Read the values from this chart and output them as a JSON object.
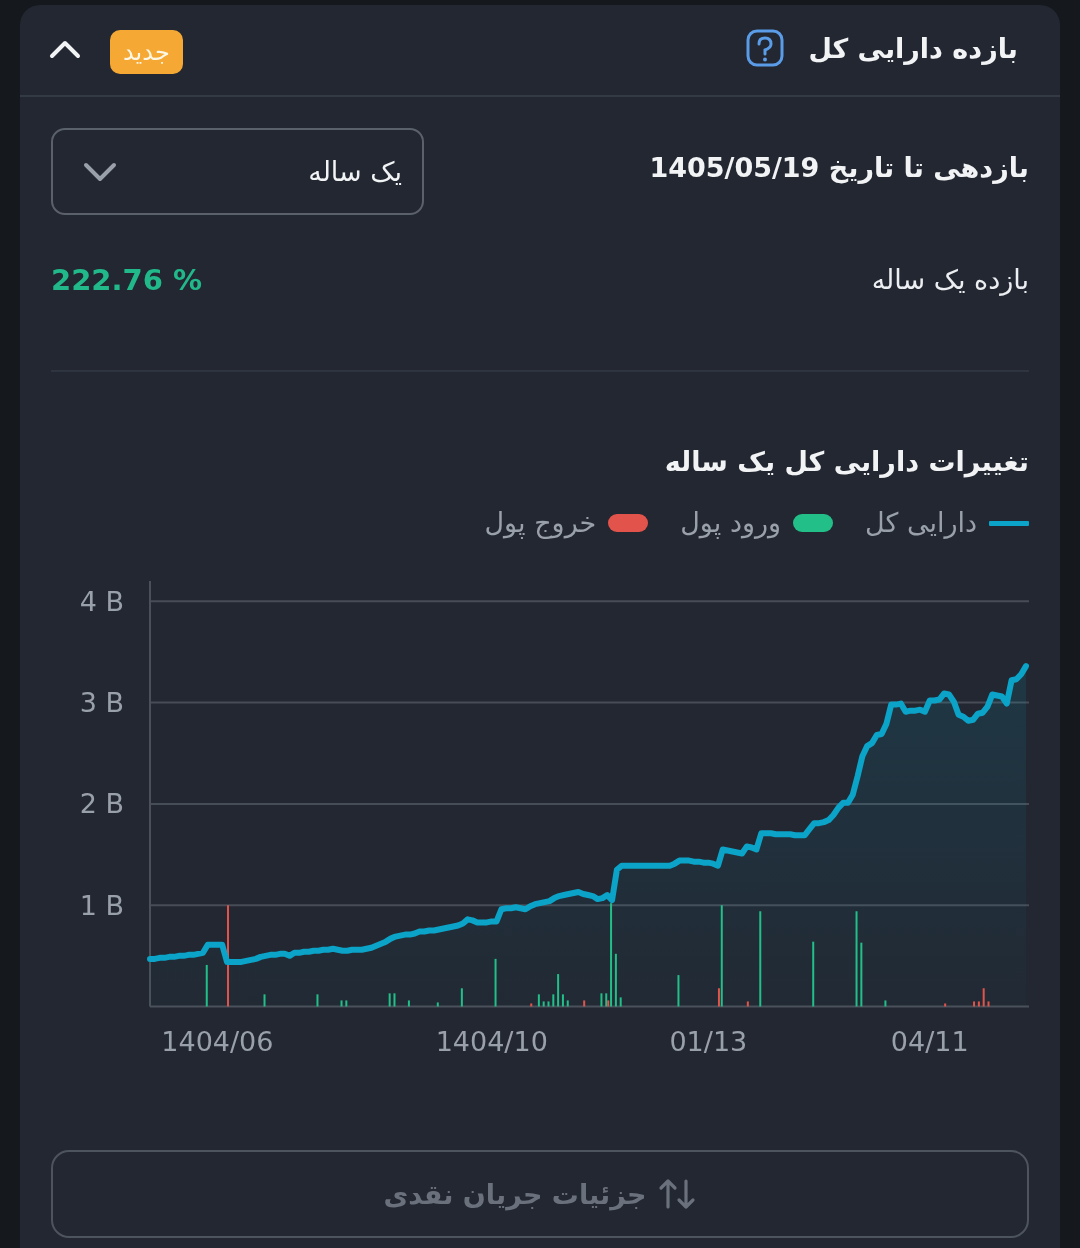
{
  "chart_data": {
    "type": "area",
    "title": "تغییرات دارایی کل یک ساله",
    "categories": [
      null,
      null,
      null,
      null,
      null,
      null,
      null,
      null,
      null,
      null,
      null,
      null,
      null,
      null,
      "1404/06",
      null,
      null,
      null,
      null,
      null,
      null,
      null,
      null,
      null,
      null,
      null,
      null,
      null,
      null,
      null,
      null,
      null,
      null,
      null,
      null,
      null,
      null,
      null,
      null,
      null,
      null,
      null,
      null,
      null,
      null,
      null,
      null,
      null,
      null,
      null,
      null,
      null,
      null,
      null,
      null,
      null,
      null,
      null,
      null,
      null,
      null,
      null,
      null,
      null,
      null,
      null,
      null,
      null,
      null,
      null,
      null,
      "1404/10",
      null,
      null,
      null,
      null,
      null,
      null,
      null,
      null,
      null,
      null,
      null,
      null,
      null,
      null,
      null,
      null,
      null,
      null,
      null,
      null,
      null,
      null,
      null,
      null,
      null,
      null,
      null,
      null,
      null,
      null,
      null,
      null,
      null,
      null,
      null,
      null,
      null,
      null,
      null,
      null,
      null,
      null,
      null,
      null,
      "01/13",
      null,
      null,
      null,
      null,
      null,
      null,
      null,
      null,
      null,
      null,
      null,
      null,
      null,
      null,
      null,
      null,
      null,
      null,
      null,
      null,
      null,
      null,
      null,
      null,
      null,
      null,
      null,
      null,
      null,
      null,
      null,
      null,
      null,
      null,
      null,
      null,
      null,
      null,
      null,
      null,
      null,
      null,
      null,
      null,
      null,
      "04/11",
      null,
      null,
      null,
      null,
      null,
      null,
      null,
      null,
      null,
      null,
      null,
      null,
      null,
      null,
      null,
      null,
      null,
      null,
      null,
      null
    ],
    "ylim": [
      0,
      4.2
    ],
    "yticks": [
      {
        "value": 1,
        "label": "1 B"
      },
      {
        "value": 2,
        "label": "2 B"
      },
      {
        "value": 3,
        "label": "3 B"
      },
      {
        "value": 4,
        "label": "4 B"
      }
    ],
    "grid": "y",
    "legend": "top right",
    "series": [
      {
        "name": "دارایی کل",
        "color": "#0ba3c7",
        "values": [
          0.47,
          0.47,
          0.48,
          0.48,
          0.49,
          0.49,
          0.5,
          0.5,
          0.51,
          0.51,
          0.52,
          0.53,
          0.61,
          0.61,
          0.61,
          0.61,
          0.44,
          0.44,
          0.44,
          0.44,
          0.45,
          0.46,
          0.47,
          0.49,
          0.5,
          0.51,
          0.51,
          0.52,
          0.52,
          0.5,
          0.53,
          0.53,
          0.54,
          0.54,
          0.55,
          0.55,
          0.56,
          0.56,
          0.57,
          0.56,
          0.55,
          0.55,
          0.56,
          0.56,
          0.56,
          0.57,
          0.58,
          0.6,
          0.62,
          0.64,
          0.67,
          0.69,
          0.7,
          0.71,
          0.71,
          0.72,
          0.74,
          0.74,
          0.75,
          0.75,
          0.76,
          0.77,
          0.78,
          0.79,
          0.8,
          0.82,
          0.86,
          0.85,
          0.83,
          0.83,
          0.83,
          0.84,
          0.84,
          0.96,
          0.97,
          0.97,
          0.98,
          0.97,
          0.96,
          0.99,
          1.01,
          1.02,
          1.03,
          1.04,
          1.07,
          1.09,
          1.1,
          1.11,
          1.12,
          1.13,
          1.11,
          1.1,
          1.09,
          1.06,
          1.07,
          1.1,
          1.05,
          1.35,
          1.39,
          1.39,
          1.39,
          1.39,
          1.39,
          1.39,
          1.39,
          1.39,
          1.39,
          1.39,
          1.39,
          1.41,
          1.44,
          1.44,
          1.44,
          1.43,
          1.43,
          1.42,
          1.42,
          1.41,
          1.39,
          1.55,
          1.54,
          1.53,
          1.52,
          1.51,
          1.58,
          1.57,
          1.55,
          1.71,
          1.71,
          1.71,
          1.7,
          1.7,
          1.7,
          1.7,
          1.69,
          1.69,
          1.69,
          1.75,
          1.81,
          1.81,
          1.82,
          1.84,
          1.89,
          1.96,
          2.01,
          2.01,
          2.09,
          2.27,
          2.47,
          2.57,
          2.6,
          2.68,
          2.69,
          2.79,
          2.98,
          2.98,
          2.99,
          2.91,
          2.92,
          2.92,
          2.93,
          2.91,
          3.02,
          3.02,
          3.03,
          3.09,
          3.08,
          3.01,
          2.88,
          2.86,
          2.82,
          2.83,
          2.89,
          2.9,
          2.96,
          3.08,
          3.07,
          3.06,
          2.99,
          3.22,
          3.23,
          3.28,
          3.36
        ]
      },
      {
        "name": "ورود پول",
        "type": "bar",
        "color": "#22bf88",
        "values": [
          null,
          null,
          null,
          null,
          null,
          null,
          null,
          null,
          null,
          null,
          null,
          null,
          0.41,
          null,
          null,
          null,
          null,
          null,
          null,
          null,
          null,
          null,
          null,
          null,
          0.12,
          null,
          null,
          null,
          null,
          null,
          null,
          null,
          null,
          null,
          null,
          0.12,
          null,
          null,
          null,
          null,
          0.06,
          0.06,
          null,
          null,
          null,
          null,
          null,
          null,
          null,
          null,
          0.13,
          0.13,
          null,
          null,
          0.06,
          null,
          null,
          null,
          null,
          null,
          0.04,
          null,
          null,
          null,
          null,
          0.18,
          null,
          null,
          null,
          null,
          null,
          null,
          0.47,
          null,
          null,
          null,
          null,
          null,
          null,
          null,
          null,
          0.12,
          0.05,
          0.05,
          0.12,
          0.32,
          0.12,
          0.06,
          null,
          null,
          null,
          null,
          null,
          null,
          0.13,
          0.13,
          1.02,
          0.52,
          0.09,
          null,
          null,
          null,
          null,
          null,
          null,
          null,
          null,
          null,
          null,
          null,
          0.31,
          null,
          null,
          null,
          null,
          null,
          null,
          null,
          null,
          1.0,
          null,
          null,
          null,
          null,
          null,
          null,
          null,
          0.94,
          null,
          null,
          null,
          null,
          null,
          null,
          null,
          null,
          null,
          null,
          0.64,
          null,
          null,
          null,
          null,
          null,
          null,
          null,
          null,
          0.94,
          0.63,
          null,
          null,
          null,
          null,
          0.06,
          null,
          null,
          null,
          null,
          null,
          null,
          null,
          null,
          null,
          null,
          null,
          null,
          null,
          null,
          null,
          null,
          null,
          null,
          null,
          null,
          null,
          null,
          null,
          null,
          null,
          null,
          null,
          null,
          null
        ]
      },
      {
        "name": "خروج پول",
        "type": "bar",
        "color": "#e2544b",
        "values": [
          null,
          null,
          null,
          null,
          null,
          null,
          null,
          null,
          null,
          null,
          null,
          null,
          null,
          null,
          null,
          null,
          1.0,
          null,
          null,
          null,
          null,
          null,
          null,
          null,
          null,
          null,
          null,
          null,
          null,
          null,
          null,
          null,
          null,
          null,
          null,
          null,
          null,
          null,
          null,
          null,
          null,
          null,
          null,
          null,
          null,
          null,
          null,
          null,
          null,
          null,
          null,
          null,
          null,
          null,
          null,
          null,
          null,
          null,
          null,
          null,
          null,
          null,
          null,
          null,
          null,
          null,
          null,
          null,
          null,
          null,
          null,
          null,
          null,
          null,
          null,
          null,
          null,
          null,
          null,
          0.03,
          null,
          null,
          null,
          null,
          null,
          null,
          null,
          null,
          null,
          null,
          0.06,
          null,
          null,
          null,
          null,
          0.06,
          null,
          null,
          null,
          null,
          null,
          null,
          null,
          null,
          null,
          null,
          null,
          null,
          null,
          null,
          null,
          null,
          null,
          null,
          null,
          null,
          null,
          null,
          0.18,
          null,
          null,
          null,
          null,
          null,
          0.05,
          null,
          null,
          null,
          null,
          null,
          null,
          null,
          null,
          null,
          null,
          null,
          null,
          null,
          null,
          null,
          null,
          null,
          null,
          null,
          null,
          null,
          null,
          null,
          null,
          null,
          null,
          null,
          null,
          null,
          null,
          null,
          null,
          null,
          null,
          null,
          null,
          null,
          null,
          null,
          null,
          0.03,
          null,
          null,
          null,
          null,
          null,
          0.05,
          0.05,
          0.18,
          0.05,
          null,
          null,
          null,
          null,
          null,
          null,
          null,
          null
        ]
      }
    ],
    "annotations": [
      "بازده دارایی کل",
      "جدید",
      "بازدهی تا تاریخ 1405/05/19",
      "یک ساله",
      "بازده یک ساله",
      "222.76 %",
      "جزئیات جریان نقدی"
    ]
  }
}
